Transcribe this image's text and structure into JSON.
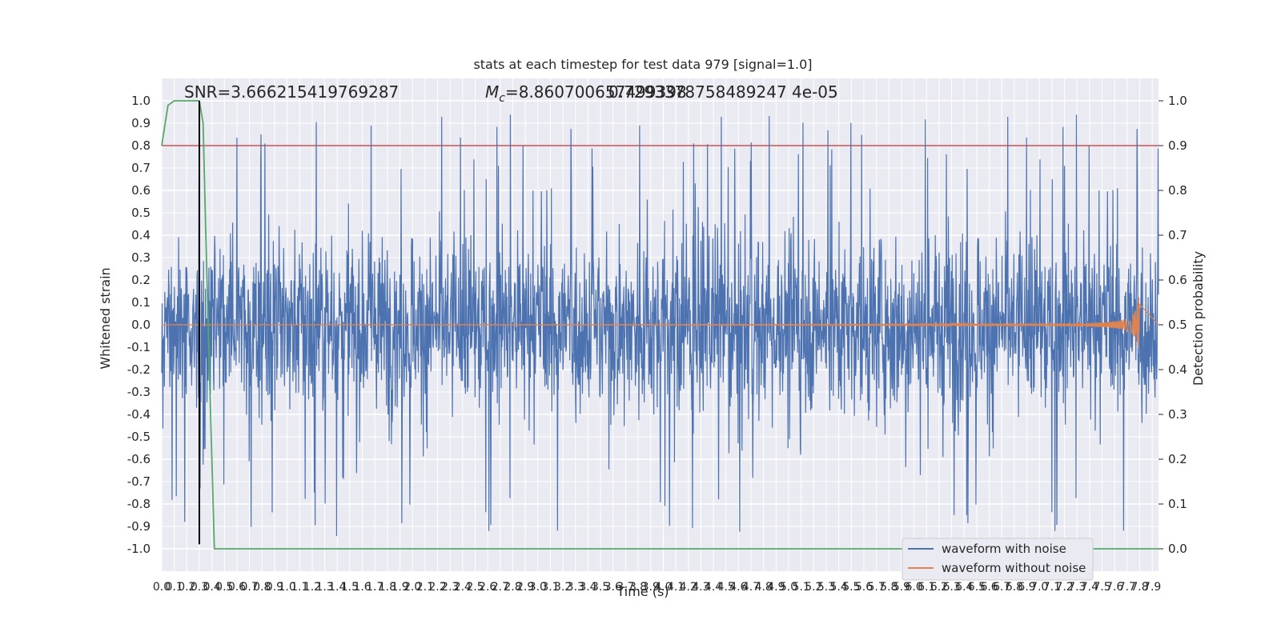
{
  "chart_data": {
    "type": "line",
    "title": "stats at each timestep for test data 979 [signal=1.0]",
    "xlabel": "Time (s)",
    "ylabel": "Whitened strain",
    "ylabel_right": "Detection probability",
    "annotations": {
      "snr": "SNR=3.666215419769287",
      "mc_prefix": "M",
      "mc_sub": "c",
      "mc_value": "=8.860700657499398",
      "overlap": "0.7293378758489247 4e-05"
    },
    "xlim": [
      0.0,
      7.95
    ],
    "ylim_left": [
      -1.1,
      1.1
    ],
    "ylim_right": [
      -0.05,
      1.05
    ],
    "x_ticks": [
      "0.0",
      "0.1",
      "0.2",
      "0.3",
      "0.4",
      "0.5",
      "0.6",
      "0.7",
      "0.8",
      "0.9",
      "1.0",
      "1.1",
      "1.2",
      "1.3",
      "1.4",
      "1.5",
      "1.6",
      "1.7",
      "1.8",
      "1.9",
      "2.0",
      "2.1",
      "2.2",
      "2.3",
      "2.4",
      "2.5",
      "2.6",
      "2.7",
      "2.8",
      "2.9",
      "3.0",
      "3.1",
      "3.2",
      "3.3",
      "3.4",
      "3.5",
      "3.6",
      "3.7",
      "3.8",
      "3.9",
      "4.0",
      "4.1",
      "4.2",
      "4.3",
      "4.4",
      "4.5",
      "4.6",
      "4.7",
      "4.8",
      "4.9",
      "5.0",
      "5.1",
      "5.2",
      "5.3",
      "5.4",
      "5.5",
      "5.6",
      "5.7",
      "5.8",
      "5.9",
      "6.0",
      "6.1",
      "6.2",
      "6.3",
      "6.4",
      "6.5",
      "6.6",
      "6.7",
      "6.8",
      "6.9",
      "7.0",
      "7.1",
      "7.2",
      "7.3",
      "7.4",
      "7.5",
      "7.6",
      "7.7",
      "7.8",
      "7.9"
    ],
    "y_ticks_left": [
      "-1.0",
      "-0.9",
      "-0.8",
      "-0.7",
      "-0.6",
      "-0.5",
      "-0.4",
      "-0.3",
      "-0.2",
      "-0.1",
      "0.0",
      "0.1",
      "0.2",
      "0.3",
      "0.4",
      "0.5",
      "0.6",
      "0.7",
      "0.8",
      "0.9",
      "1.0"
    ],
    "y_ticks_right": [
      "0.0",
      "0.1",
      "0.2",
      "0.3",
      "0.4",
      "0.5",
      "0.6",
      "0.7",
      "0.8",
      "0.9",
      "1.0"
    ],
    "series": [
      {
        "name": "waveform with noise",
        "color": "#4c72b0",
        "kind": "noisy strain",
        "amplitude_range": [
          -1.0,
          1.0
        ],
        "typical_envelope": [
          -0.4,
          0.4
        ]
      },
      {
        "name": "waveform without noise",
        "color": "#dd8452",
        "kind": "chirp",
        "chirp_end_time": 7.8,
        "peak_amplitude": 0.13
      },
      {
        "name": "",
        "color": "#55a868",
        "axis": "right",
        "x": [
          0.0,
          0.05,
          0.1,
          0.2,
          0.3,
          0.33,
          0.35,
          0.38,
          0.42,
          7.95
        ],
        "y": [
          0.9,
          0.99,
          1.0,
          1.0,
          1.0,
          0.95,
          0.72,
          0.4,
          0.0,
          0.0
        ]
      }
    ],
    "threshold_line": {
      "y_right": 0.9,
      "color": "#c44e52"
    },
    "vertical_marker": {
      "x": 0.3,
      "color": "#000000",
      "y_range_left": [
        -0.98,
        1.0
      ]
    },
    "background": "#eaeaf2",
    "grid": true,
    "legend_position": "lower right"
  }
}
